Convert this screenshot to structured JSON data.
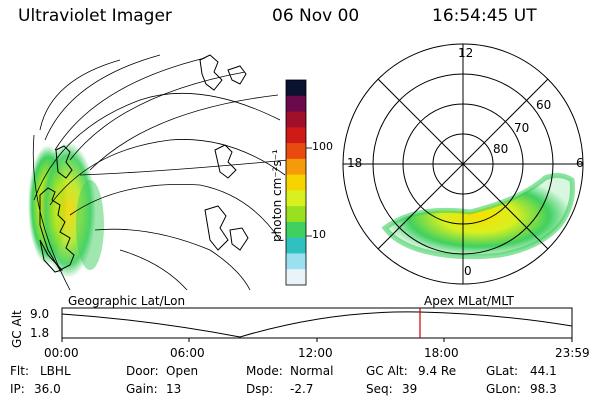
{
  "header": {
    "instrument": "Ultraviolet Imager",
    "date": "06 Nov 00",
    "time": "16:54:45 UT"
  },
  "colorbar": {
    "title": "photon cm⁻²s⁻¹",
    "tick_labels": [
      "100",
      "10"
    ],
    "colors": [
      "#0a1230",
      "#6a0a4a",
      "#a0102a",
      "#d01a18",
      "#e84a10",
      "#f59a08",
      "#f6d400",
      "#d8f020",
      "#98e020",
      "#40d060",
      "#30c0c0",
      "#9ae0f0",
      "#e8f4f8"
    ]
  },
  "panels": {
    "left_label": "Geographic Lat/Lon",
    "right_label": "Apex MLat/MLT",
    "polar_labels": {
      "top": "12",
      "bottom": "0",
      "left": "18",
      "right": "6",
      "lat_60": "60",
      "lat_70": "70",
      "lat_80": "80"
    }
  },
  "timeline": {
    "ylabel": "GC Alt",
    "y_ticks": [
      "9.0",
      "1.8"
    ],
    "x_ticks": [
      "00:00",
      "06:00",
      "12:00",
      "18:00",
      "23:59"
    ],
    "marker_color": "#cc0000"
  },
  "info": {
    "row1": [
      {
        "k": "Flt:",
        "v": "LBHL"
      },
      {
        "k": "Door:",
        "v": "Open"
      },
      {
        "k": "Mode:",
        "v": "Normal"
      },
      {
        "k": "GC Alt:",
        "v": "9.4 Re"
      },
      {
        "k": "GLat:",
        "v": "44.1"
      }
    ],
    "row2": [
      {
        "k": "IP:",
        "v": "36.0"
      },
      {
        "k": "Gain:",
        "v": "13"
      },
      {
        "k": "Dsp:",
        "v": "-2.7"
      },
      {
        "k": "Seq:",
        "v": "39"
      },
      {
        "k": "GLon:",
        "v": "98.3"
      }
    ]
  }
}
